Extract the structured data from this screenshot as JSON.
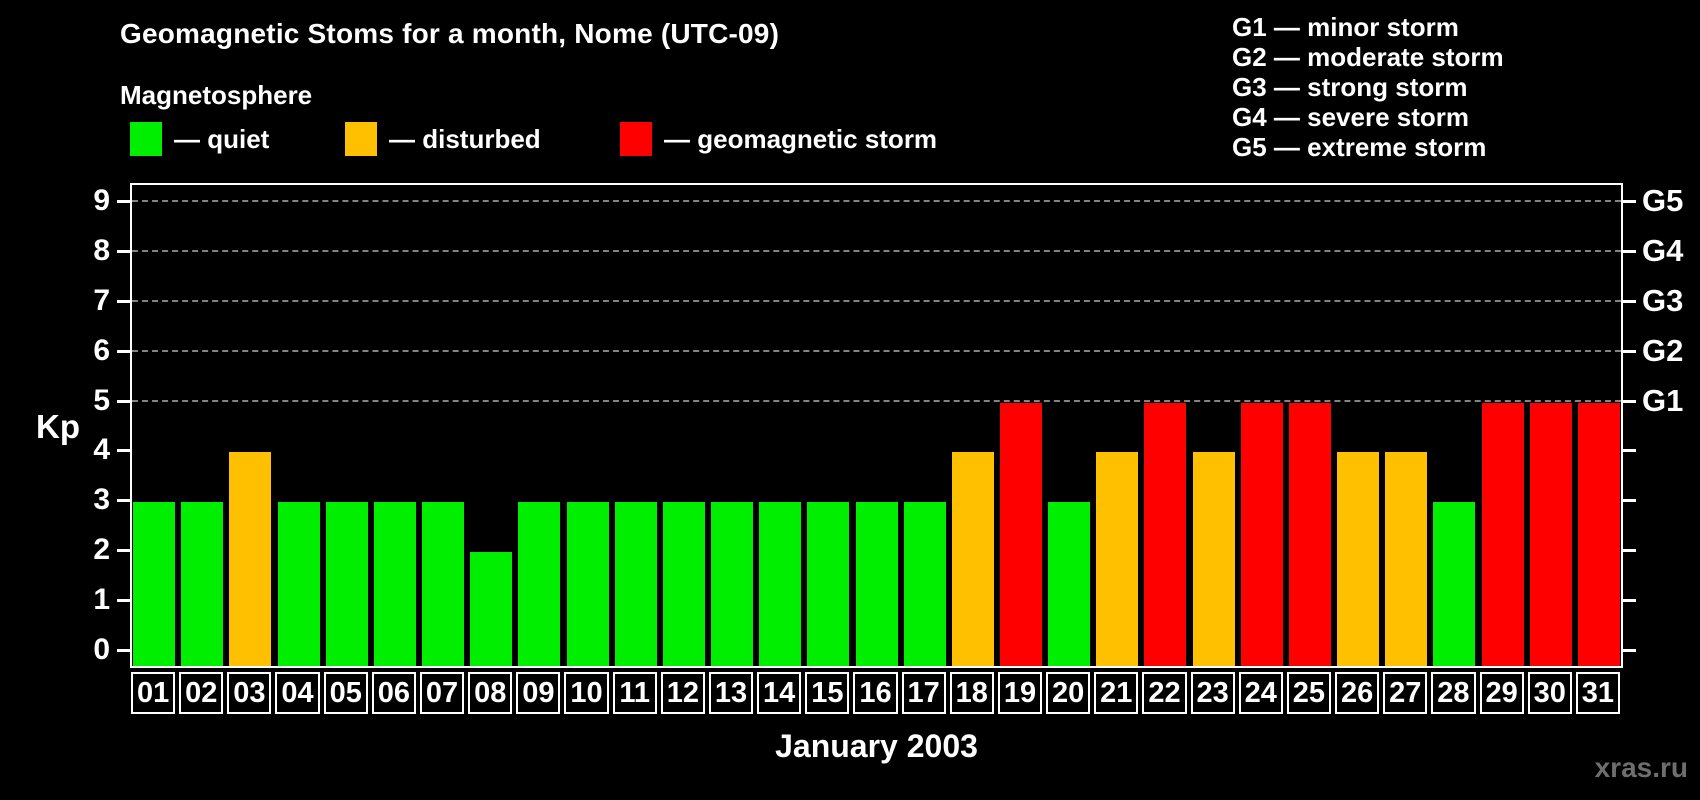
{
  "title": "Geomagnetic Stoms for a month, Nome (UTC-09)",
  "magnetosphere_label": "Magnetosphere",
  "legend": {
    "items": [
      {
        "label": "— quiet",
        "status": "quiet"
      },
      {
        "label": "— disturbed",
        "status": "disturbed"
      },
      {
        "label": "— geomagnetic storm",
        "status": "storm"
      }
    ]
  },
  "g_scale": [
    "G1 — minor storm",
    "G2 — moderate storm",
    "G3 — strong storm",
    "G4 — severe storm",
    "G5 — extreme storm"
  ],
  "watermark": "xras.ru",
  "chart_data": {
    "type": "bar",
    "title": "Geomagnetic Stoms for a month, Nome (UTC-09)",
    "subtitle": "Magnetosphere",
    "xlabel": "January 2003",
    "ylabel": "Kp",
    "ylim": [
      0,
      9
    ],
    "yticks": [
      0,
      1,
      2,
      3,
      4,
      5,
      6,
      7,
      8,
      9
    ],
    "gridlines_kp": [
      5,
      6,
      7,
      8,
      9
    ],
    "right_axis_labels": [
      {
        "kp": 5,
        "label": "G1"
      },
      {
        "kp": 6,
        "label": "G2"
      },
      {
        "kp": 7,
        "label": "G3"
      },
      {
        "kp": 8,
        "label": "G4"
      },
      {
        "kp": 9,
        "label": "G5"
      }
    ],
    "legend_position": "top-left",
    "grid": "dashed horizontal at storm levels",
    "categories": [
      "01",
      "02",
      "03",
      "04",
      "05",
      "06",
      "07",
      "08",
      "09",
      "10",
      "11",
      "12",
      "13",
      "14",
      "15",
      "16",
      "17",
      "18",
      "19",
      "20",
      "21",
      "22",
      "23",
      "24",
      "25",
      "26",
      "27",
      "28",
      "29",
      "30",
      "31"
    ],
    "values": [
      3,
      3,
      4,
      3,
      3,
      3,
      3,
      2,
      3,
      3,
      3,
      3,
      3,
      3,
      3,
      3,
      3,
      4,
      5,
      3,
      4,
      5,
      4,
      5,
      5,
      4,
      4,
      3,
      5,
      5,
      5
    ],
    "statuses": [
      "quiet",
      "quiet",
      "disturbed",
      "quiet",
      "quiet",
      "quiet",
      "quiet",
      "quiet",
      "quiet",
      "quiet",
      "quiet",
      "quiet",
      "quiet",
      "quiet",
      "quiet",
      "quiet",
      "quiet",
      "disturbed",
      "storm",
      "quiet",
      "disturbed",
      "storm",
      "disturbed",
      "storm",
      "storm",
      "disturbed",
      "disturbed",
      "quiet",
      "storm",
      "storm",
      "storm"
    ],
    "colors": {
      "quiet": "#00ee00",
      "disturbed": "#ffc000",
      "storm": "#ff0000"
    }
  }
}
